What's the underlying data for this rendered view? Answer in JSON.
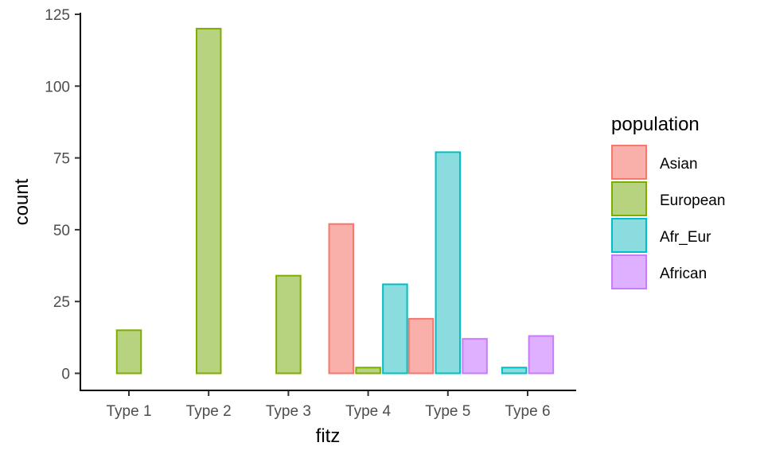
{
  "chart_data": {
    "type": "bar",
    "xlabel": "fitz",
    "ylabel": "count",
    "ylim": [
      0,
      125
    ],
    "yticks": [
      0,
      25,
      50,
      75,
      100,
      125
    ],
    "categories": [
      "Type 1",
      "Type 2",
      "Type 3",
      "Type 4",
      "Type 5",
      "Type 6"
    ],
    "legend": {
      "title": "population",
      "position": "right"
    },
    "series": [
      {
        "name": "Asian",
        "color": "#F8766D",
        "fill": "#F9B0AB",
        "values": [
          0,
          0,
          0,
          52,
          19,
          0
        ]
      },
      {
        "name": "European",
        "color": "#7CAE00",
        "fill": "#B8D380",
        "values": [
          15,
          120,
          34,
          2,
          0,
          0
        ]
      },
      {
        "name": "Afr_Eur",
        "color": "#00BFC4",
        "fill": "#8ADCDE",
        "values": [
          0,
          0,
          0,
          31,
          77,
          2
        ]
      },
      {
        "name": "African",
        "color": "#C77CFF",
        "fill": "#DFB0FF",
        "values": [
          0,
          0,
          0,
          0,
          12,
          13
        ]
      }
    ],
    "grid": false
  }
}
